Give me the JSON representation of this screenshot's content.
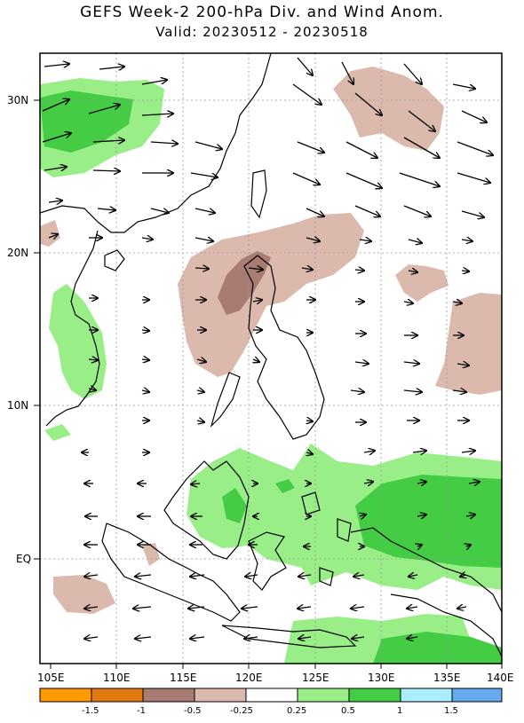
{
  "title": "GEFS Week-2 200-hPa Div. and Wind Anom.",
  "subtitle": "Valid: 20230512 - 20230518",
  "lat_labels": [
    "30N",
    "20N",
    "10N",
    "EQ"
  ],
  "lon_labels": [
    "105E",
    "110E",
    "115E",
    "120E",
    "125E",
    "130E",
    "135E",
    "140E"
  ],
  "colorbar": {
    "labels": [
      "-1.5",
      "-1",
      "-0.5",
      "-0.25",
      "0.25",
      "0.5",
      "1",
      "1.5"
    ],
    "colors": [
      "#ff9900",
      "#e07a10",
      "#a87c72",
      "#dbb9ac",
      "#ffffff",
      "#99ee88",
      "#44cc44",
      "#aaeeff",
      "#66aaee"
    ]
  },
  "map": {
    "lon_range": [
      105,
      140
    ],
    "lat_range": [
      -7,
      33
    ],
    "positive_light": "#99ee88",
    "positive_dark": "#44cc44",
    "negative_light": "#dbb9ac",
    "negative_dark": "#a87c72",
    "grid": "dotted"
  }
}
